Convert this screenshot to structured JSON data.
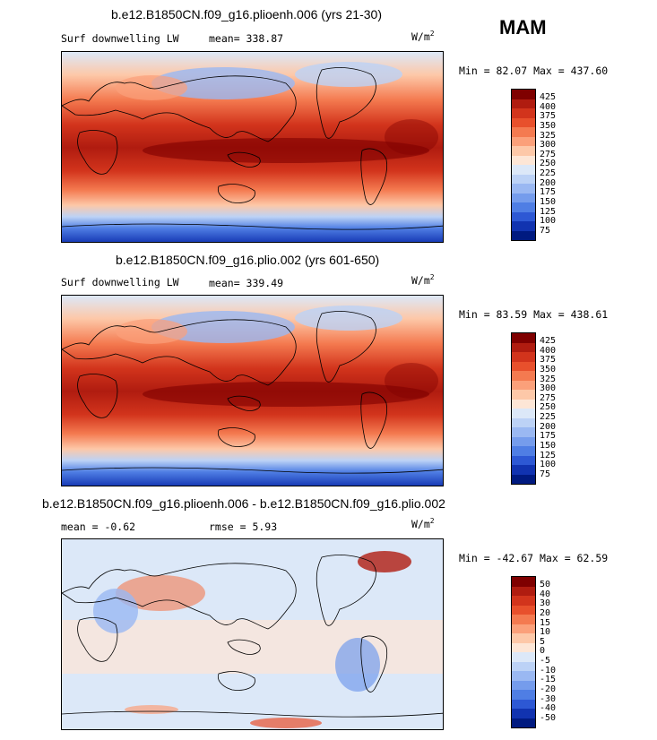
{
  "season": "MAM",
  "units": "W/m",
  "units_sup": "2",
  "panels": [
    {
      "title": "b.e12.B1850CN.f09_g16.plioenh.006 (yrs 21-30)",
      "variable": "Surf downwelling LW",
      "mean_label": "mean= 338.87",
      "minmax": "Min =  82.07 Max = 437.60"
    },
    {
      "title": "b.e12.B1850CN.f09_g16.plio.002 (yrs 601-650)",
      "variable": "Surf downwelling LW",
      "mean_label": "mean= 339.49",
      "minmax": "Min =  83.59 Max = 438.61"
    },
    {
      "title": "b.e12.B1850CN.f09_g16.plioenh.006 - b.e12.B1850CN.f09_g16.plio.002",
      "mean_label": "mean =  -0.62",
      "rmse_label": "rmse =    5.93",
      "minmax": "Min = -42.67 Max =  62.59"
    }
  ],
  "colorbar_abs": {
    "levels": [
      "425",
      "400",
      "375",
      "350",
      "325",
      "300",
      "275",
      "250",
      "225",
      "200",
      "175",
      "150",
      "125",
      "100",
      "75"
    ],
    "colors": [
      "#7f0000",
      "#b01c10",
      "#d2341c",
      "#e8502c",
      "#f47a50",
      "#fba07a",
      "#fdc8a8",
      "#fde6d6",
      "#dce8f8",
      "#bcd2f6",
      "#9ab8f2",
      "#759cec",
      "#4f7ee4",
      "#2d58d4",
      "#1133b0",
      "#001a80"
    ]
  },
  "colorbar_diff": {
    "levels": [
      "50",
      "40",
      "30",
      "20",
      "15",
      "10",
      "5",
      "0",
      "-5",
      "-10",
      "-15",
      "-20",
      "-30",
      "-40",
      "-50"
    ],
    "colors": [
      "#7f0000",
      "#b01c10",
      "#d2341c",
      "#e8502c",
      "#f47a50",
      "#fba07a",
      "#fdc8a8",
      "#fde6d6",
      "#dce8f8",
      "#bcd2f6",
      "#9ab8f2",
      "#759cec",
      "#4f7ee4",
      "#2d58d4",
      "#1133b0",
      "#001a80"
    ]
  }
}
